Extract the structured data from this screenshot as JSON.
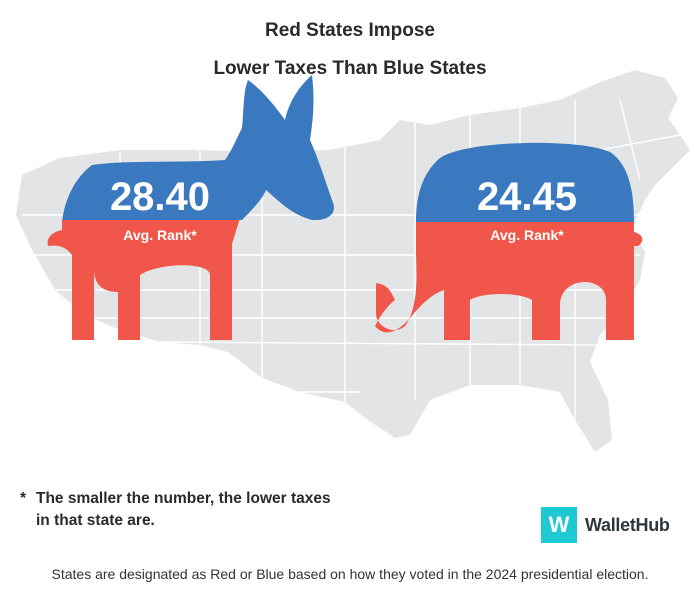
{
  "title_line1": "Red States Impose",
  "title_line2": "Lower Taxes Than Blue States",
  "chart_data": {
    "type": "table",
    "categories": [
      "Blue States",
      "Red States"
    ],
    "values": [
      28.4,
      24.45
    ],
    "value_labels": [
      "28.40",
      "24.45"
    ],
    "sublabel": "Avg. Rank*"
  },
  "colors": {
    "blue": "#3a79bf",
    "red": "#f0574a",
    "map": "#e3e4e5",
    "logo": "#1ec9d3"
  },
  "footnote": {
    "star": "*",
    "text": "The smaller the number, the lower taxes in that state are."
  },
  "logo": {
    "letter": "W",
    "name": "WalletHub"
  },
  "source": "States are designated as Red or Blue based on how they voted in the 2024 presidential election."
}
